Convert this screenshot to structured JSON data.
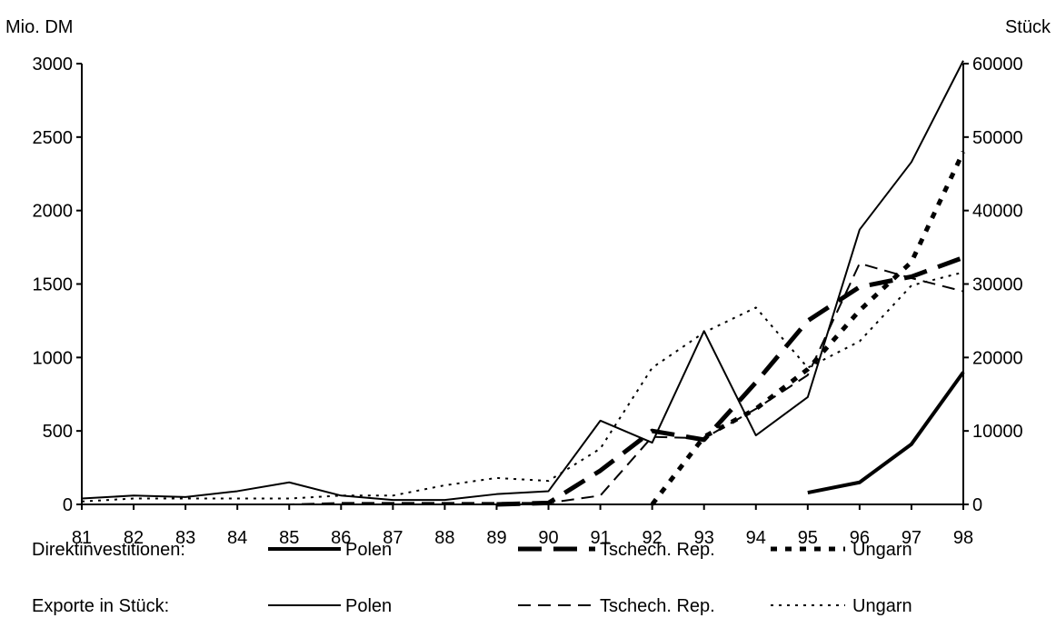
{
  "chart_data": {
    "type": "line",
    "title": "",
    "ylabel_left": "Mio. DM",
    "ylabel_right": "Stück",
    "x": [
      "81",
      "82",
      "83",
      "84",
      "85",
      "86",
      "87",
      "88",
      "89",
      "90",
      "91",
      "92",
      "93",
      "94",
      "95",
      "96",
      "97",
      "98"
    ],
    "ylim_left": [
      0,
      3000
    ],
    "ylim_right": [
      0,
      60000
    ],
    "yticks_left": [
      "0",
      "500",
      "1000",
      "1500",
      "2000",
      "2500",
      "3000"
    ],
    "yticks_right": [
      "0",
      "10000",
      "20000",
      "30000",
      "40000",
      "50000",
      "60000"
    ],
    "grid": false,
    "legend_position": "bottom",
    "legend_groups": [
      {
        "label": "Direktinvestitionen:",
        "series": [
          0,
          1,
          2
        ]
      },
      {
        "label": "Exporte in Stück:",
        "series": [
          3,
          4,
          5
        ]
      }
    ],
    "series": [
      {
        "name": "Polen",
        "axis": "left",
        "style": "solid-thick",
        "values": [
          null,
          null,
          null,
          null,
          null,
          null,
          null,
          null,
          null,
          null,
          null,
          null,
          null,
          null,
          80,
          150,
          410,
          900
        ]
      },
      {
        "name": "Tschech. Rep.",
        "axis": "left",
        "style": "dash-thick",
        "values": [
          null,
          null,
          null,
          null,
          null,
          null,
          null,
          null,
          0,
          10,
          230,
          500,
          440,
          830,
          1250,
          1480,
          1550,
          1680
        ]
      },
      {
        "name": "Ungarn",
        "axis": "left",
        "style": "dot-thick",
        "values": [
          null,
          null,
          null,
          null,
          null,
          null,
          null,
          null,
          null,
          null,
          null,
          0,
          460,
          650,
          920,
          1320,
          1650,
          2400
        ]
      },
      {
        "name": "Polen",
        "axis": "right",
        "style": "solid-thin",
        "values": [
          800,
          1200,
          1000,
          1800,
          3000,
          1200,
          600,
          600,
          1400,
          1800,
          11400,
          8400,
          23600,
          9400,
          14600,
          37400,
          46600,
          60400
        ]
      },
      {
        "name": "Tschech. Rep.",
        "axis": "right",
        "style": "dash-thin",
        "values": [
          0,
          0,
          0,
          0,
          0,
          200,
          200,
          200,
          200,
          200,
          1200,
          9200,
          9000,
          13000,
          17600,
          32800,
          30800,
          29000
        ]
      },
      {
        "name": "Ungarn",
        "axis": "right",
        "style": "dot-thin",
        "values": [
          400,
          800,
          800,
          800,
          800,
          1200,
          1200,
          2600,
          3600,
          3200,
          7600,
          18600,
          23400,
          26800,
          18600,
          22200,
          29800,
          31600
        ]
      }
    ]
  }
}
